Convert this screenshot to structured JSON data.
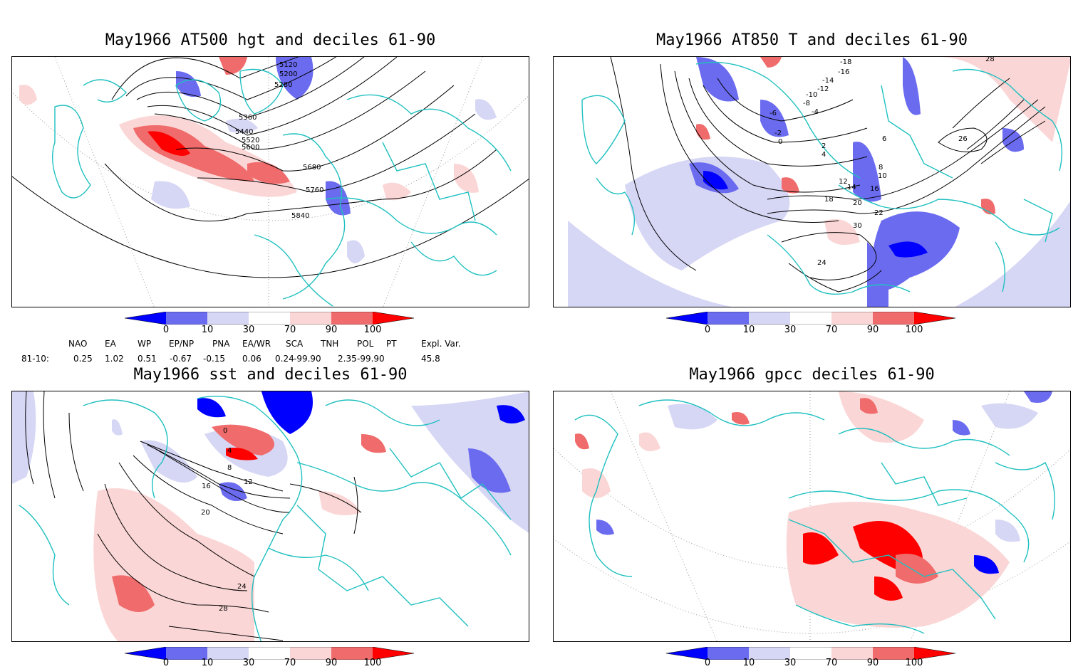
{
  "panels": [
    {
      "id": "p1",
      "title": "May1966 AT500 hgt and deciles 61-90",
      "contour_labels": [
        "5120",
        "5200",
        "5280",
        "5360",
        "5440",
        "5520",
        "5600",
        "5680",
        "5760",
        "5840"
      ]
    },
    {
      "id": "p2",
      "title": "May1966 AT850 T and deciles 61-90",
      "contour_labels": [
        "-18",
        "-16",
        "-14",
        "-12",
        "-10",
        "-8",
        "-6",
        "-4",
        "-2",
        "0",
        "2",
        "4",
        "6",
        "8",
        "10",
        "12",
        "14",
        "16",
        "18",
        "20",
        "22",
        "24",
        "26",
        "28",
        "30"
      ]
    },
    {
      "id": "p3",
      "title": "May1966 sst and deciles 61-90",
      "contour_labels": [
        "0",
        "4",
        "8",
        "12",
        "16",
        "20",
        "24",
        "28"
      ]
    },
    {
      "id": "p4",
      "title": "May1966 gpcc deciles 61-90",
      "contour_labels": []
    }
  ],
  "colorbar": {
    "ticks": [
      "0",
      "10",
      "30",
      "70",
      "90",
      "100"
    ],
    "colors": {
      "dark_blue": "#0000ff",
      "mid_blue": "#6b6bf0",
      "light_blue": "#d6d6f5",
      "light_red": "#fbd6d6",
      "mid_red": "#f06b6b",
      "dark_red": "#ff0000"
    }
  },
  "colors": {
    "coast": "#20c0c0",
    "contour": "#000000",
    "grid": "#9a9a9a"
  },
  "indices": {
    "row_label": "81-10:",
    "headers": [
      "NAO",
      "EA",
      "WP",
      "EP/NP",
      "PNA",
      "EA/WR",
      "SCA",
      "TNH",
      "POL",
      "PT",
      "Expl. Var."
    ],
    "values": [
      "0.25",
      "1.02",
      "0.51",
      "-0.67",
      "-0.15",
      "0.06",
      "0.24",
      "-99.90",
      "2.35",
      "-99.90",
      "45.8"
    ]
  }
}
